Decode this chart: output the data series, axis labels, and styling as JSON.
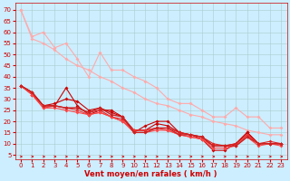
{
  "xlabel": "Vent moyen/en rafales ( km/h )",
  "bg_color": "#cceeff",
  "grid_color": "#aacccc",
  "x_ticks": [
    0,
    1,
    2,
    3,
    4,
    5,
    6,
    7,
    8,
    9,
    10,
    11,
    12,
    13,
    14,
    15,
    16,
    17,
    18,
    19,
    20,
    21,
    22,
    23
  ],
  "y_ticks": [
    5,
    10,
    15,
    20,
    25,
    30,
    35,
    40,
    45,
    50,
    55,
    60,
    65,
    70
  ],
  "lines": [
    {
      "x": [
        0,
        1,
        2,
        3,
        4,
        5,
        6,
        7,
        8,
        9,
        10,
        11,
        12,
        13,
        14,
        15,
        16,
        17,
        18,
        19,
        20,
        21,
        22,
        23
      ],
      "y": [
        70,
        58,
        60,
        53,
        55,
        48,
        40,
        51,
        43,
        43,
        40,
        38,
        35,
        30,
        28,
        28,
        25,
        22,
        22,
        26,
        22,
        22,
        17,
        17
      ],
      "color": "#ffaaaa",
      "lw": 0.8,
      "marker": "D",
      "ms": 2.0
    },
    {
      "x": [
        0,
        1,
        2,
        3,
        4,
        5,
        6,
        7,
        8,
        9,
        10,
        11,
        12,
        13,
        14,
        15,
        16,
        17,
        18,
        19,
        20,
        21,
        22,
        23
      ],
      "y": [
        70,
        57,
        55,
        52,
        48,
        45,
        43,
        40,
        38,
        35,
        33,
        30,
        28,
        27,
        25,
        23,
        22,
        20,
        19,
        18,
        16,
        15,
        14,
        14
      ],
      "color": "#ffaaaa",
      "lw": 0.8,
      "marker": "D",
      "ms": 2.0
    },
    {
      "x": [
        0,
        1,
        2,
        3,
        4,
        5,
        6,
        7,
        8,
        9,
        10,
        11,
        12,
        13,
        14,
        15,
        16,
        17,
        18,
        19,
        20,
        21,
        22,
        23
      ],
      "y": [
        36,
        33,
        27,
        27,
        35,
        27,
        23,
        25,
        25,
        22,
        15,
        18,
        20,
        20,
        15,
        14,
        12,
        7,
        7,
        10,
        15,
        10,
        10,
        10
      ],
      "color": "#cc0000",
      "lw": 0.8,
      "marker": "D",
      "ms": 2.0
    },
    {
      "x": [
        0,
        1,
        2,
        3,
        4,
        5,
        6,
        7,
        8,
        9,
        10,
        11,
        12,
        13,
        14,
        15,
        16,
        17,
        18,
        19,
        20,
        21,
        22,
        23
      ],
      "y": [
        36,
        33,
        27,
        28,
        30,
        29,
        25,
        26,
        24,
        22,
        16,
        16,
        19,
        18,
        15,
        14,
        13,
        9,
        9,
        10,
        15,
        10,
        10,
        10
      ],
      "color": "#cc0000",
      "lw": 0.8,
      "marker": "D",
      "ms": 2.0
    },
    {
      "x": [
        0,
        1,
        2,
        3,
        4,
        5,
        6,
        7,
        8,
        9,
        10,
        11,
        12,
        13,
        14,
        15,
        16,
        17,
        18,
        19,
        20,
        21,
        22,
        23
      ],
      "y": [
        36,
        32,
        27,
        27,
        26,
        26,
        24,
        25,
        22,
        21,
        16,
        16,
        17,
        17,
        15,
        14,
        13,
        10,
        9,
        10,
        14,
        10,
        11,
        10
      ],
      "color": "#dd2222",
      "lw": 0.8,
      "marker": "D",
      "ms": 2.0
    },
    {
      "x": [
        0,
        1,
        2,
        3,
        4,
        5,
        6,
        7,
        8,
        9,
        10,
        11,
        12,
        13,
        14,
        15,
        16,
        17,
        18,
        19,
        20,
        21,
        22,
        23
      ],
      "y": [
        36,
        32,
        26,
        27,
        26,
        25,
        23,
        24,
        22,
        20,
        16,
        16,
        17,
        16,
        14,
        13,
        12,
        9,
        9,
        9,
        14,
        10,
        10,
        10
      ],
      "color": "#ee3333",
      "lw": 0.8,
      "marker": "D",
      "ms": 2.0
    },
    {
      "x": [
        0,
        1,
        2,
        3,
        4,
        5,
        6,
        7,
        8,
        9,
        10,
        11,
        12,
        13,
        14,
        15,
        16,
        17,
        18,
        19,
        20,
        21,
        22,
        23
      ],
      "y": [
        36,
        32,
        26,
        26,
        25,
        24,
        23,
        24,
        22,
        20,
        15,
        15,
        16,
        16,
        14,
        13,
        12,
        8,
        8,
        9,
        13,
        9,
        10,
        9
      ],
      "color": "#ff4444",
      "lw": 0.8,
      "marker": "D",
      "ms": 2.0
    },
    {
      "x": [
        0,
        1,
        2,
        3,
        4,
        5,
        6,
        7,
        8,
        9,
        10,
        11,
        12,
        13,
        14,
        15,
        16,
        17,
        18,
        19,
        20,
        21,
        22,
        23
      ],
      "y": [
        36,
        33,
        27,
        27,
        26,
        26,
        24,
        26,
        23,
        22,
        15,
        15,
        17,
        17,
        14,
        14,
        13,
        9,
        9,
        9,
        13,
        10,
        10,
        10
      ],
      "color": "#cc2222",
      "lw": 1.0,
      "marker": "D",
      "ms": 2.0
    }
  ],
  "xlim": [
    -0.5,
    23.5
  ],
  "ylim": [
    3,
    73
  ],
  "arrow_color": "#cc0000",
  "xlabel_color": "#cc0000",
  "xlabel_fontsize": 6,
  "tick_fontsize": 5,
  "tick_color": "#cc0000",
  "spine_color": "#cc0000"
}
